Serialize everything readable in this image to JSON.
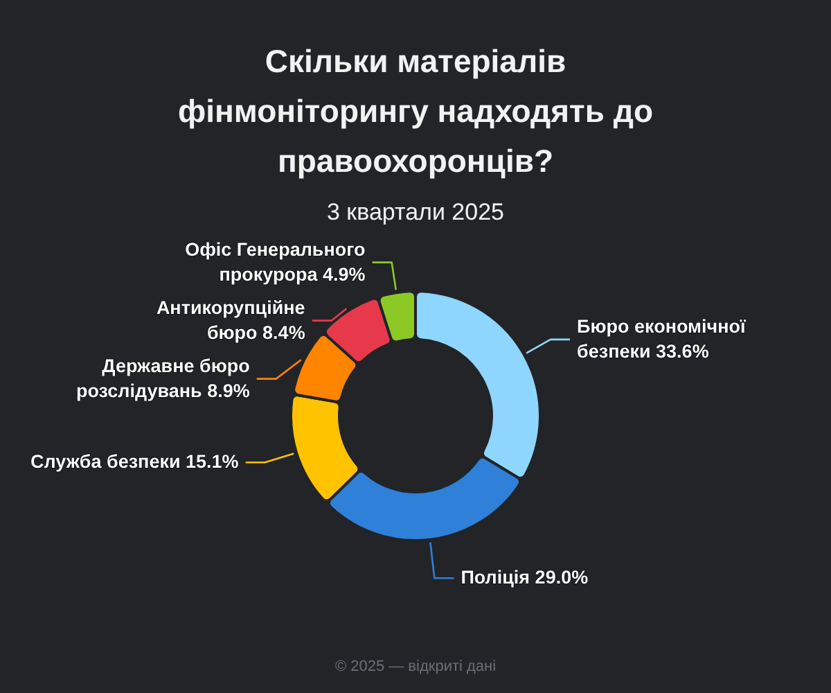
{
  "chart_data": {
    "type": "donut",
    "title": "Скільки матеріалів фінмоніторингу надходять до правоохоронців?",
    "subtitle": "3 квартали 2025",
    "categories": [
      "Бюро економічної безпеки",
      "Поліція",
      "Служба безпеки",
      "Державне бюро розслідувань",
      "Антикорупційне бюро",
      "Офіс Генерального прокурора"
    ],
    "values": [
      33.6,
      29.0,
      15.1,
      8.9,
      8.4,
      4.9
    ],
    "value_labels": [
      "33.6%",
      "29.0%",
      "15.1%",
      "8.9%",
      "8.4%",
      "4.9%"
    ],
    "colors": [
      "#8fd6ff",
      "#2e80d8",
      "#ffc300",
      "#ff8500",
      "#e63a4c",
      "#8cc925"
    ],
    "annotations": [
      "© 2025 — відкриті дані"
    ]
  }
}
